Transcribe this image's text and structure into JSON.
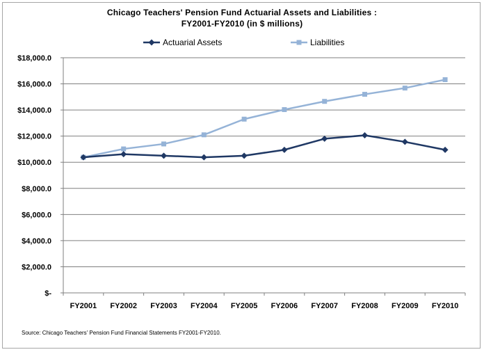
{
  "chart_data": {
    "type": "line",
    "title": "Chicago Teachers' Pension Fund Actuarial Assets and Liabilities :",
    "subtitle": "FY2001-FY2010 (in $ millions)",
    "source": "Source: Chicago Teachers' Pension Fund Financial Statements FY2001-FY2010.",
    "categories": [
      "FY2001",
      "FY2002",
      "FY2003",
      "FY2004",
      "FY2005",
      "FY2006",
      "FY2007",
      "FY2008",
      "FY2009",
      "FY2010"
    ],
    "y_ticks": [
      "$-",
      "$2,000.0",
      "$4,000.0",
      "$6,000.0",
      "$8,000.0",
      "$10,000.0",
      "$12,000.0",
      "$14,000.0",
      "$16,000.0",
      "$18,000.0"
    ],
    "ylim": [
      0,
      18000
    ],
    "grid": true,
    "legend_position": "top",
    "series": [
      {
        "name": "Actuarial Assets",
        "color": "#1f3864",
        "marker": "diamond",
        "values": [
          10380,
          10620,
          10500,
          10380,
          10500,
          10950,
          11800,
          12060,
          11560,
          10950
        ]
      },
      {
        "name": "Liabilities",
        "color": "#95b3d7",
        "marker": "square",
        "values": [
          10380,
          11020,
          11400,
          12100,
          13300,
          14030,
          14660,
          15200,
          15680,
          16320
        ]
      }
    ]
  }
}
